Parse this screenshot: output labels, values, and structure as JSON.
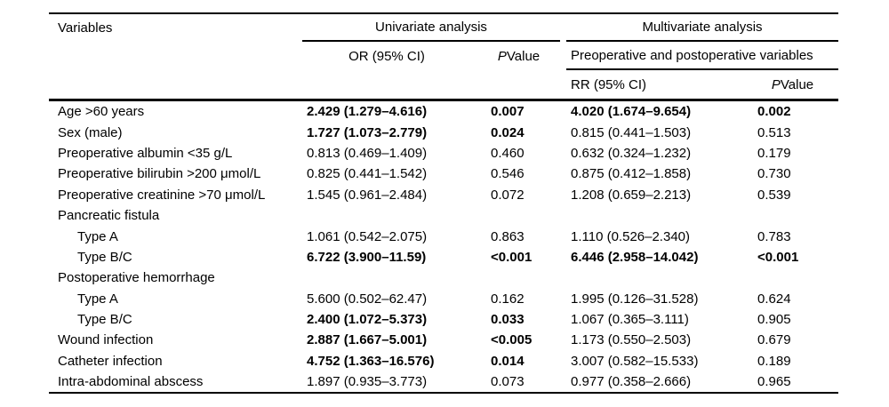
{
  "colors": {
    "text": "#000000",
    "rule": "#000000",
    "background": "#ffffff"
  },
  "table": {
    "header": {
      "variables": "Variables",
      "univariate_group": "Univariate analysis",
      "multivariate_group": "Multivariate analysis",
      "or_ci": "OR (95% CI)",
      "preop_postop": "Preoperative and postoperative variables",
      "rr_ci": "RR (95% CI)",
      "p_italic": "P",
      "p_rest": " Value"
    },
    "rows": [
      {
        "variable": "Age >60 years",
        "indent": false,
        "or": {
          "text": "2.429 (1.279–4.616)",
          "bold": true
        },
        "p_uni": {
          "text": "0.007",
          "bold": true
        },
        "rr": {
          "text": "4.020 (1.674–9.654)",
          "bold": true
        },
        "p_multi": {
          "text": "0.002",
          "bold": true
        }
      },
      {
        "variable": "Sex (male)",
        "indent": false,
        "or": {
          "text": "1.727 (1.073–2.779)",
          "bold": true
        },
        "p_uni": {
          "text": "0.024",
          "bold": true
        },
        "rr": {
          "text": "0.815 (0.441–1.503)",
          "bold": false
        },
        "p_multi": {
          "text": "0.513",
          "bold": false
        }
      },
      {
        "variable": "Preoperative albumin <35 g/L",
        "indent": false,
        "or": {
          "text": "0.813 (0.469–1.409)",
          "bold": false
        },
        "p_uni": {
          "text": "0.460",
          "bold": false
        },
        "rr": {
          "text": "0.632 (0.324–1.232)",
          "bold": false
        },
        "p_multi": {
          "text": "0.179",
          "bold": false
        }
      },
      {
        "variable": "Preoperative bilirubin >200 μmol/L",
        "indent": false,
        "or": {
          "text": "0.825 (0.441–1.542)",
          "bold": false
        },
        "p_uni": {
          "text": "0.546",
          "bold": false
        },
        "rr": {
          "text": "0.875 (0.412–1.858)",
          "bold": false
        },
        "p_multi": {
          "text": "0.730",
          "bold": false
        }
      },
      {
        "variable": "Preoperative creatinine >70 μmol/L",
        "indent": false,
        "or": {
          "text": "1.545 (0.961–2.484)",
          "bold": false
        },
        "p_uni": {
          "text": "0.072",
          "bold": false
        },
        "rr": {
          "text": "1.208 (0.659–2.213)",
          "bold": false
        },
        "p_multi": {
          "text": "0.539",
          "bold": false
        }
      },
      {
        "variable": "Pancreatic fistula",
        "indent": false,
        "or": {
          "text": "",
          "bold": false
        },
        "p_uni": {
          "text": "",
          "bold": false
        },
        "rr": {
          "text": "",
          "bold": false
        },
        "p_multi": {
          "text": "",
          "bold": false
        }
      },
      {
        "variable": "Type A",
        "indent": true,
        "or": {
          "text": "1.061 (0.542–2.075)",
          "bold": false
        },
        "p_uni": {
          "text": "0.863",
          "bold": false
        },
        "rr": {
          "text": "1.110 (0.526–2.340)",
          "bold": false
        },
        "p_multi": {
          "text": "0.783",
          "bold": false
        }
      },
      {
        "variable": "Type B/C",
        "indent": true,
        "or": {
          "text": "6.722 (3.900–11.59)",
          "bold": true
        },
        "p_uni": {
          "text": "<0.001",
          "bold": true
        },
        "rr": {
          "text": "6.446 (2.958–14.042)",
          "bold": true
        },
        "p_multi": {
          "text": "<0.001",
          "bold": true
        }
      },
      {
        "variable": "Postoperative hemorrhage",
        "indent": false,
        "or": {
          "text": "",
          "bold": false
        },
        "p_uni": {
          "text": "",
          "bold": false
        },
        "rr": {
          "text": "",
          "bold": false
        },
        "p_multi": {
          "text": "",
          "bold": false
        }
      },
      {
        "variable": "Type A",
        "indent": true,
        "or": {
          "text": "5.600 (0.502–62.47)",
          "bold": false
        },
        "p_uni": {
          "text": "0.162",
          "bold": false
        },
        "rr": {
          "text": "1.995 (0.126–31.528)",
          "bold": false
        },
        "p_multi": {
          "text": "0.624",
          "bold": false
        }
      },
      {
        "variable": "Type B/C",
        "indent": true,
        "or": {
          "text": "2.400 (1.072–5.373)",
          "bold": true
        },
        "p_uni": {
          "text": "0.033",
          "bold": true
        },
        "rr": {
          "text": "1.067 (0.365–3.111)",
          "bold": false
        },
        "p_multi": {
          "text": "0.905",
          "bold": false
        }
      },
      {
        "variable": "Wound infection",
        "indent": false,
        "or": {
          "text": "2.887 (1.667–5.001)",
          "bold": true
        },
        "p_uni": {
          "text": "<0.005",
          "bold": true
        },
        "rr": {
          "text": "1.173 (0.550–2.503)",
          "bold": false
        },
        "p_multi": {
          "text": "0.679",
          "bold": false
        }
      },
      {
        "variable": "Catheter infection",
        "indent": false,
        "or": {
          "text": "4.752 (1.363–16.576)",
          "bold": true
        },
        "p_uni": {
          "text": "0.014",
          "bold": true
        },
        "rr": {
          "text": "3.007 (0.582–15.533)",
          "bold": false
        },
        "p_multi": {
          "text": "0.189",
          "bold": false
        }
      },
      {
        "variable": "Intra-abdominal abscess",
        "indent": false,
        "or": {
          "text": "1.897 (0.935–3.773)",
          "bold": false
        },
        "p_uni": {
          "text": "0.073",
          "bold": false
        },
        "rr": {
          "text": "0.977 (0.358–2.666)",
          "bold": false
        },
        "p_multi": {
          "text": "0.965",
          "bold": false
        }
      }
    ]
  }
}
